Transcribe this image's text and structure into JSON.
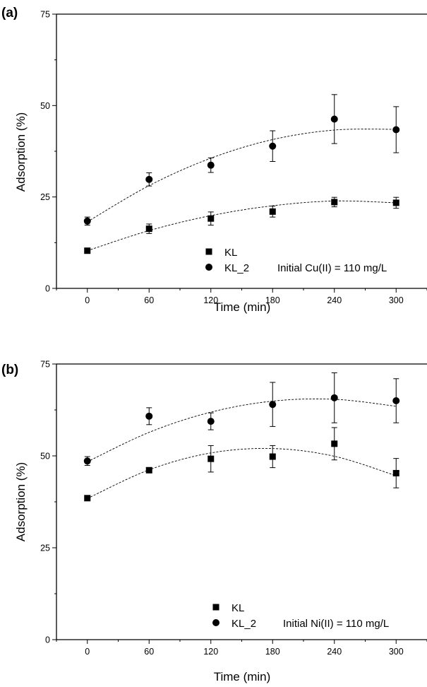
{
  "chart_data": [
    {
      "type": "scatter",
      "panel_label": "(a)",
      "xlabel": "Time (min)",
      "ylabel": "Adsorption (%)",
      "xlim": [
        -30,
        330
      ],
      "ylim": [
        0,
        75
      ],
      "xticks": [
        0,
        60,
        120,
        180,
        240,
        300
      ],
      "yticks": [
        0,
        25,
        50,
        75
      ],
      "x": [
        0,
        60,
        120,
        180,
        240,
        300
      ],
      "annotation": "Initial Cu(II) = 110 mg/L",
      "legend_position": "bottom-center",
      "grid": false,
      "series": [
        {
          "name": "KL",
          "marker": "square",
          "values": [
            10.3,
            16.3,
            19.1,
            21.0,
            23.6,
            23.4
          ],
          "errors": [
            0.5,
            1.3,
            1.8,
            1.5,
            1.3,
            1.5
          ],
          "fit": [
            10.3,
            15.8,
            19.9,
            22.6,
            23.9,
            23.4
          ]
        },
        {
          "name": "KL_2",
          "marker": "circle",
          "values": [
            18.4,
            29.8,
            33.7,
            38.9,
            46.3,
            43.4
          ],
          "errors": [
            1.1,
            1.8,
            2.0,
            4.2,
            6.7,
            6.3
          ],
          "fit": [
            18.2,
            28.1,
            35.6,
            40.7,
            43.3,
            43.5
          ]
        }
      ]
    },
    {
      "type": "scatter",
      "panel_label": "(b)",
      "xlabel": "Time (min)",
      "ylabel": "Adsorption (%)",
      "xlim": [
        -30,
        330
      ],
      "ylim": [
        0,
        75
      ],
      "xticks": [
        0,
        60,
        120,
        180,
        240,
        300
      ],
      "yticks": [
        0,
        25,
        50,
        75
      ],
      "x": [
        0,
        60,
        120,
        180,
        240,
        300
      ],
      "annotation": "Initial Ni(II) = 110 mg/L",
      "legend_position": "bottom-center",
      "grid": false,
      "series": [
        {
          "name": "KL",
          "marker": "square",
          "values": [
            38.5,
            46.1,
            49.2,
            49.8,
            53.3,
            45.3
          ],
          "errors": [
            0.4,
            0.5,
            3.6,
            3.0,
            4.4,
            4.0
          ],
          "fit": [
            38.4,
            46.2,
            50.8,
            52.0,
            49.9,
            44.6
          ]
        },
        {
          "name": "KL_2",
          "marker": "circle",
          "values": [
            48.6,
            60.8,
            59.4,
            64.0,
            65.8,
            65.0
          ],
          "errors": [
            1.2,
            2.3,
            2.3,
            6.0,
            6.8,
            6.0
          ],
          "fit": [
            48.4,
            56.4,
            61.9,
            64.9,
            65.4,
            63.5
          ]
        }
      ]
    }
  ]
}
